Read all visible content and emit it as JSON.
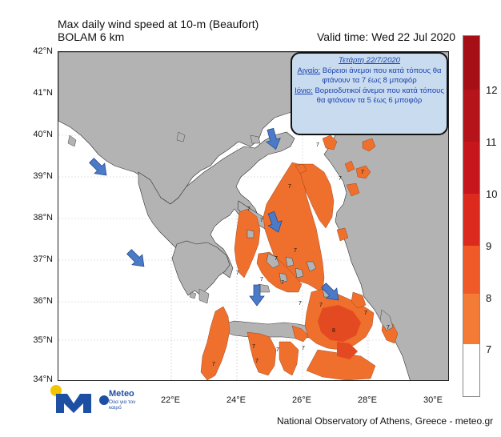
{
  "header": {
    "title": "Max daily wind speed at 10-m (Beaufort)",
    "model": "BOLAM 6 km",
    "valid_time": "Valid time: Wed 22 Jul 2020"
  },
  "map": {
    "lat_labels": [
      "42°N",
      "41°N",
      "40°N",
      "39°N",
      "38°N",
      "37°N",
      "36°N",
      "35°N",
      "34°N"
    ],
    "lon_labels": [
      "22°E",
      "24°E",
      "26°E",
      "28°E",
      "30°E"
    ],
    "wind_value_labels": [
      "7",
      "7",
      "7",
      "7",
      "7",
      "7",
      "7",
      "7",
      "7",
      "7",
      "7",
      "7",
      "7",
      "7",
      "7",
      "7",
      "7",
      "8",
      "7",
      "7",
      "7"
    ]
  },
  "annotation": {
    "date": "Τετάρτη 22/7/2020",
    "aegean_label": "Αιγαίο:",
    "aegean_text": " Βόρειοι άνεμοι που κατά τόπους θα φτάνουν τα 7 έως 8 μποφόρ",
    "ionian_label": "Ιόνιο:",
    "ionian_text": " Βορειοδυτικοί άνεμοι που κατά τόπους θα φτάνουν τα 5 έως 6 μποφόρ"
  },
  "colorbar": {
    "labels": [
      "12",
      "11",
      "10",
      "9",
      "8",
      "7"
    ],
    "colors": [
      "#a50f15",
      "#b8141b",
      "#cb181d",
      "#e0301e",
      "#ef5a28",
      "#f37b35",
      "#ffffff"
    ]
  },
  "logo": {
    "name": "Meteo",
    "tagline": "Όλα για τον καιρό"
  },
  "footer": {
    "credit": "National Observatory of Athens, Greece - meteo.gr"
  }
}
